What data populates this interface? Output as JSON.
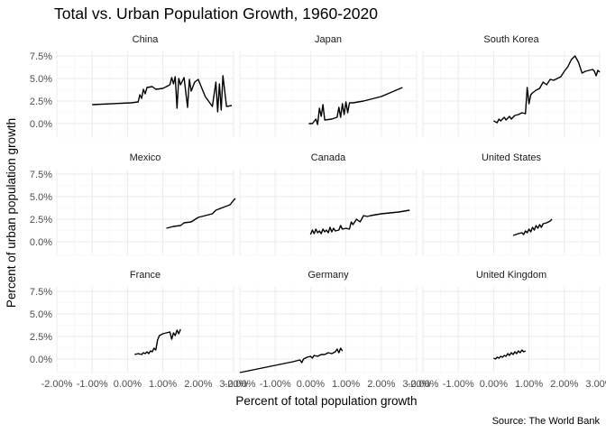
{
  "chart_data": {
    "type": "line",
    "title": "Total vs. Urban Population Growth, 1960-2020",
    "xlabel": "Percent of total population growth",
    "ylabel": "Percent of urban population growth",
    "caption": "Source: The World Bank",
    "xlim": [
      -2.0,
      3.0
    ],
    "ylim": [
      -1.5,
      8.0
    ],
    "x_ticks": [
      -2.0,
      -1.0,
      0.0,
      1.0,
      2.0,
      3.0
    ],
    "x_tick_labels": [
      "-2.00%",
      "-1.00%",
      "0.00%",
      "1.00%",
      "2.00%",
      "3.00%"
    ],
    "y_ticks": [
      0.0,
      2.5,
      5.0,
      7.5
    ],
    "y_tick_labels": [
      "0.0%",
      "2.5%",
      "5.0%",
      "7.5%"
    ],
    "grid": true,
    "panels": [
      {
        "name": "China",
        "points": [
          [
            -1.0,
            2.1
          ],
          [
            0.1,
            2.3
          ],
          [
            0.3,
            2.4
          ],
          [
            0.35,
            3.2
          ],
          [
            0.4,
            2.8
          ],
          [
            0.45,
            3.8
          ],
          [
            0.5,
            3.3
          ],
          [
            0.55,
            4.0
          ],
          [
            0.7,
            4.1
          ],
          [
            0.8,
            3.8
          ],
          [
            1.0,
            3.9
          ],
          [
            1.2,
            4.3
          ],
          [
            1.25,
            5.1
          ],
          [
            1.3,
            4.4
          ],
          [
            1.35,
            5.2
          ],
          [
            1.4,
            1.7
          ],
          [
            1.45,
            5.0
          ],
          [
            1.5,
            4.3
          ],
          [
            1.6,
            5.1
          ],
          [
            1.7,
            1.8
          ],
          [
            1.75,
            4.9
          ],
          [
            1.8,
            3.6
          ],
          [
            1.9,
            4.6
          ],
          [
            2.0,
            4.9
          ],
          [
            2.2,
            3.0
          ],
          [
            2.4,
            1.9
          ],
          [
            2.5,
            4.6
          ],
          [
            2.55,
            1.3
          ],
          [
            2.6,
            4.4
          ],
          [
            2.65,
            1.5
          ],
          [
            2.7,
            5.3
          ],
          [
            2.8,
            1.9
          ],
          [
            2.95,
            2.0
          ]
        ]
      },
      {
        "name": "Japan",
        "points": [
          [
            -0.05,
            0.0
          ],
          [
            0.05,
            0.0
          ],
          [
            0.15,
            0.5
          ],
          [
            0.2,
            -0.1
          ],
          [
            0.25,
            1.7
          ],
          [
            0.3,
            0.8
          ],
          [
            0.35,
            2.1
          ],
          [
            0.4,
            0.4
          ],
          [
            0.6,
            0.5
          ],
          [
            0.75,
            0.7
          ],
          [
            0.8,
            1.8
          ],
          [
            0.85,
            0.7
          ],
          [
            0.9,
            2.2
          ],
          [
            0.95,
            1.0
          ],
          [
            1.0,
            2.4
          ],
          [
            1.05,
            1.2
          ],
          [
            1.1,
            2.3
          ],
          [
            1.2,
            2.3
          ],
          [
            1.5,
            2.5
          ],
          [
            2.0,
            3.0
          ],
          [
            2.6,
            4.0
          ]
        ]
      },
      {
        "name": "South Korea",
        "points": [
          [
            0.0,
            0.3
          ],
          [
            0.1,
            0.1
          ],
          [
            0.15,
            0.5
          ],
          [
            0.2,
            0.3
          ],
          [
            0.3,
            0.7
          ],
          [
            0.35,
            0.4
          ],
          [
            0.45,
            0.8
          ],
          [
            0.5,
            0.5
          ],
          [
            0.6,
            0.9
          ],
          [
            0.7,
            1.0
          ],
          [
            0.8,
            1.2
          ],
          [
            0.9,
            1.1
          ],
          [
            0.95,
            4.0
          ],
          [
            1.0,
            2.2
          ],
          [
            1.05,
            3.2
          ],
          [
            1.1,
            3.4
          ],
          [
            1.2,
            3.7
          ],
          [
            1.3,
            3.9
          ],
          [
            1.4,
            4.6
          ],
          [
            1.5,
            4.3
          ],
          [
            1.6,
            4.9
          ],
          [
            1.7,
            4.8
          ],
          [
            1.8,
            5.0
          ],
          [
            1.9,
            5.2
          ],
          [
            2.0,
            5.8
          ],
          [
            2.1,
            6.3
          ],
          [
            2.2,
            7.1
          ],
          [
            2.3,
            7.5
          ],
          [
            2.4,
            6.8
          ],
          [
            2.5,
            5.6
          ],
          [
            2.6,
            5.8
          ],
          [
            2.7,
            5.9
          ],
          [
            2.8,
            6.0
          ],
          [
            2.85,
            5.8
          ],
          [
            2.9,
            5.3
          ],
          [
            2.95,
            5.9
          ],
          [
            3.0,
            5.7
          ]
        ]
      },
      {
        "name": "Mexico",
        "points": [
          [
            1.1,
            1.5
          ],
          [
            1.3,
            1.7
          ],
          [
            1.5,
            1.8
          ],
          [
            1.6,
            2.1
          ],
          [
            1.8,
            2.2
          ],
          [
            2.0,
            2.7
          ],
          [
            2.2,
            2.9
          ],
          [
            2.4,
            3.1
          ],
          [
            2.5,
            3.5
          ],
          [
            2.7,
            3.8
          ],
          [
            2.9,
            4.1
          ],
          [
            3.0,
            4.6
          ],
          [
            3.05,
            4.8
          ]
        ]
      },
      {
        "name": "Canada",
        "points": [
          [
            0.0,
            0.8
          ],
          [
            0.05,
            1.3
          ],
          [
            0.1,
            0.9
          ],
          [
            0.15,
            1.4
          ],
          [
            0.2,
            1.0
          ],
          [
            0.25,
            1.2
          ],
          [
            0.3,
            0.9
          ],
          [
            0.35,
            1.4
          ],
          [
            0.4,
            1.1
          ],
          [
            0.45,
            1.3
          ],
          [
            0.5,
            1.0
          ],
          [
            0.55,
            1.6
          ],
          [
            0.6,
            1.1
          ],
          [
            0.65,
            1.5
          ],
          [
            0.7,
            1.2
          ],
          [
            0.8,
            1.3
          ],
          [
            0.85,
            1.8
          ],
          [
            0.9,
            1.4
          ],
          [
            1.0,
            1.5
          ],
          [
            1.1,
            1.4
          ],
          [
            1.15,
            2.2
          ],
          [
            1.2,
            1.9
          ],
          [
            1.3,
            2.5
          ],
          [
            1.4,
            2.2
          ],
          [
            1.5,
            2.9
          ],
          [
            1.6,
            2.8
          ],
          [
            1.7,
            2.9
          ],
          [
            2.0,
            3.1
          ],
          [
            2.5,
            3.3
          ],
          [
            2.8,
            3.5
          ]
        ]
      },
      {
        "name": "United States",
        "points": [
          [
            0.55,
            0.7
          ],
          [
            0.7,
            0.9
          ],
          [
            0.8,
            1.0
          ],
          [
            0.85,
            0.8
          ],
          [
            0.9,
            1.2
          ],
          [
            0.95,
            1.0
          ],
          [
            1.0,
            1.4
          ],
          [
            1.05,
            1.1
          ],
          [
            1.1,
            1.6
          ],
          [
            1.15,
            1.3
          ],
          [
            1.2,
            1.8
          ],
          [
            1.25,
            1.5
          ],
          [
            1.3,
            1.9
          ],
          [
            1.35,
            1.6
          ],
          [
            1.4,
            2.0
          ],
          [
            1.5,
            2.1
          ],
          [
            1.6,
            2.3
          ],
          [
            1.65,
            2.5
          ]
        ]
      },
      {
        "name": "France",
        "points": [
          [
            0.2,
            0.5
          ],
          [
            0.3,
            0.6
          ],
          [
            0.4,
            0.5
          ],
          [
            0.45,
            0.7
          ],
          [
            0.5,
            0.6
          ],
          [
            0.55,
            0.8
          ],
          [
            0.6,
            0.6
          ],
          [
            0.65,
            0.9
          ],
          [
            0.7,
            0.8
          ],
          [
            0.75,
            1.2
          ],
          [
            0.8,
            1.0
          ],
          [
            0.85,
            2.1
          ],
          [
            0.9,
            2.6
          ],
          [
            1.0,
            2.8
          ],
          [
            1.1,
            2.9
          ],
          [
            1.2,
            3.0
          ],
          [
            1.25,
            2.2
          ],
          [
            1.3,
            2.9
          ],
          [
            1.35,
            2.6
          ],
          [
            1.4,
            3.2
          ],
          [
            1.45,
            2.8
          ],
          [
            1.5,
            3.3
          ]
        ]
      },
      {
        "name": "Germany",
        "points": [
          [
            -2.0,
            -1.5
          ],
          [
            -1.5,
            -1.1
          ],
          [
            -1.0,
            -0.7
          ],
          [
            -0.5,
            -0.3
          ],
          [
            -0.3,
            -0.1
          ],
          [
            -0.25,
            -0.4
          ],
          [
            -0.2,
            0.0
          ],
          [
            -0.1,
            0.2
          ],
          [
            0.0,
            0.3
          ],
          [
            0.05,
            0.1
          ],
          [
            0.1,
            0.4
          ],
          [
            0.2,
            0.3
          ],
          [
            0.3,
            0.5
          ],
          [
            0.4,
            0.5
          ],
          [
            0.5,
            0.7
          ],
          [
            0.6,
            0.6
          ],
          [
            0.7,
            0.8
          ],
          [
            0.75,
            1.1
          ],
          [
            0.8,
            0.7
          ],
          [
            0.85,
            1.2
          ],
          [
            0.9,
            0.9
          ]
        ]
      },
      {
        "name": "United Kingdom",
        "points": [
          [
            0.0,
            0.1
          ],
          [
            0.05,
            0.0
          ],
          [
            0.1,
            0.2
          ],
          [
            0.15,
            0.1
          ],
          [
            0.2,
            0.3
          ],
          [
            0.25,
            0.2
          ],
          [
            0.3,
            0.4
          ],
          [
            0.35,
            0.3
          ],
          [
            0.4,
            0.6
          ],
          [
            0.45,
            0.4
          ],
          [
            0.5,
            0.7
          ],
          [
            0.55,
            0.5
          ],
          [
            0.6,
            0.8
          ],
          [
            0.65,
            0.6
          ],
          [
            0.7,
            0.9
          ],
          [
            0.75,
            0.7
          ],
          [
            0.8,
            1.0
          ],
          [
            0.85,
            0.8
          ],
          [
            0.9,
            0.9
          ]
        ]
      }
    ]
  }
}
